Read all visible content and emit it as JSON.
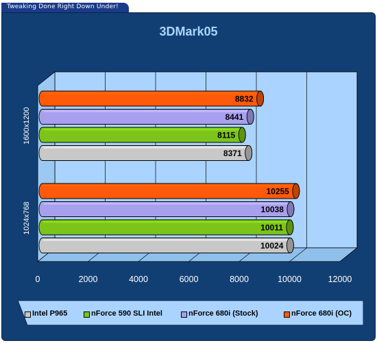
{
  "banner": {
    "text": "Tweaking Done Right Down Under!"
  },
  "chart_data": {
    "type": "bar",
    "orientation": "horizontal",
    "title": "3DMark05",
    "xlabel": "",
    "ylabel": "",
    "xlim": [
      0,
      12000
    ],
    "xticks": [
      0,
      2000,
      4000,
      6000,
      8000,
      10000,
      12000
    ],
    "grid": true,
    "legend_position": "bottom",
    "categories": [
      "1600x1200",
      "1024x768"
    ],
    "series": [
      {
        "name": "Intel P965",
        "color": "#c8c8c8",
        "values": [
          8371,
          10024
        ]
      },
      {
        "name": "nForce 590 SLI Intel",
        "color": "#7dc41a",
        "values": [
          8115,
          10011
        ]
      },
      {
        "name": "nForce 680i (Stock)",
        "color": "#a8a0ee",
        "values": [
          8441,
          10038
        ]
      },
      {
        "name": "nForce 680i (OC)",
        "color": "#ff5a0a",
        "values": [
          8832,
          10255
        ]
      }
    ]
  }
}
